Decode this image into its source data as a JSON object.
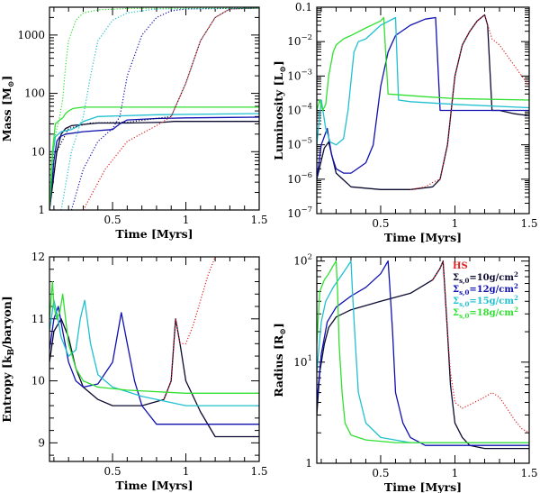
{
  "colors": {
    "black": "#0a0a30",
    "blue": "#1010b0",
    "cyan": "#20c0d0",
    "green": "#30e030",
    "red": "#e02020"
  },
  "chart_data": [
    {
      "type": "line",
      "ylabel_parts": [
        "Mass [M",
        "⊙",
        "]"
      ],
      "xlabel": "Time [Myrs]",
      "xlim": [
        0.07,
        1.5
      ],
      "ylim": [
        1,
        3000
      ],
      "yscale": "log",
      "xticks": [
        0.5,
        1,
        1.5
      ],
      "xtick_labels": [
        "0.5",
        "1",
        "1.5"
      ],
      "yticks": [
        1,
        10,
        100,
        1000
      ],
      "ytick_labels": [
        "1",
        "10",
        "100",
        "1000"
      ],
      "series": [
        {
          "color_key": "black",
          "style": "solid",
          "x": [
            0.07,
            0.12,
            0.15,
            0.18,
            0.22,
            0.4,
            0.6,
            0.85,
            0.92,
            0.95,
            1.0,
            1.5
          ],
          "y": [
            1,
            10,
            20,
            25,
            28,
            31,
            31,
            32,
            33,
            33,
            33,
            33
          ]
        },
        {
          "color_key": "blue",
          "style": "solid",
          "x": [
            0.07,
            0.1,
            0.12,
            0.14,
            0.18,
            0.3,
            0.5,
            0.55,
            0.6,
            0.8,
            1.0,
            1.5
          ],
          "y": [
            1,
            7,
            15,
            18,
            20,
            22,
            24,
            30,
            35,
            37,
            38,
            39
          ]
        },
        {
          "color_key": "cyan",
          "style": "solid",
          "x": [
            0.07,
            0.09,
            0.11,
            0.15,
            0.22,
            0.26,
            0.3,
            0.4,
            0.8,
            1.5
          ],
          "y": [
            1,
            8,
            18,
            22,
            24,
            27,
            33,
            40,
            43,
            45
          ]
        },
        {
          "color_key": "green",
          "style": "solid",
          "x": [
            0.07,
            0.09,
            0.11,
            0.14,
            0.16,
            0.18,
            0.2,
            0.23,
            0.3,
            0.5,
            1.0,
            1.5
          ],
          "y": [
            1,
            10,
            30,
            35,
            38,
            45,
            50,
            55,
            58,
            58,
            58,
            58
          ]
        },
        {
          "color_key": "black",
          "style": "dotted",
          "x": [
            0.07,
            0.12,
            0.2,
            0.35,
            0.6,
            0.9,
            1.0,
            1.1,
            1.2,
            1.3,
            1.5
          ],
          "y": [
            1,
            10,
            25,
            31,
            32,
            40,
            150,
            800,
            2000,
            2800,
            2900
          ]
        },
        {
          "color_key": "red",
          "style": "dotted",
          "x": [
            0.3,
            0.45,
            0.6,
            0.8,
            0.9,
            1.0,
            1.1,
            1.2,
            1.3,
            1.5
          ],
          "y": [
            1,
            5,
            15,
            28,
            40,
            150,
            800,
            2000,
            2800,
            2900
          ]
        },
        {
          "color_key": "blue",
          "style": "dotted",
          "x": [
            0.22,
            0.3,
            0.4,
            0.5,
            0.55,
            0.6,
            0.7,
            0.8,
            0.9,
            1.0,
            1.5
          ],
          "y": [
            1,
            5,
            15,
            25,
            40,
            200,
            1000,
            2000,
            2600,
            2800,
            2900
          ]
        },
        {
          "color_key": "cyan",
          "style": "dotted",
          "x": [
            0.15,
            0.22,
            0.27,
            0.3,
            0.35,
            0.4,
            0.5,
            0.6,
            0.8,
            1.5
          ],
          "y": [
            1,
            10,
            25,
            40,
            200,
            800,
            1800,
            2400,
            2800,
            2900
          ]
        },
        {
          "color_key": "green",
          "style": "dotted",
          "x": [
            0.07,
            0.1,
            0.14,
            0.16,
            0.18,
            0.2,
            0.25,
            0.3,
            0.4,
            0.6,
            1.5
          ],
          "y": [
            1,
            15,
            40,
            80,
            300,
            800,
            1800,
            2400,
            2700,
            2850,
            2900
          ]
        }
      ]
    },
    {
      "type": "line",
      "ylabel_parts": [
        "Luminosity [L",
        "⊙",
        "]"
      ],
      "xlabel": "Time [Myrs]",
      "xlim": [
        0.07,
        1.5
      ],
      "ylim": [
        1e-07,
        0.1
      ],
      "yscale": "log",
      "xticks": [
        0.5,
        1,
        1.5
      ],
      "xtick_labels": [
        "0.5",
        "1",
        "1.5"
      ],
      "yticks": [
        1e-07,
        1e-06,
        1e-05,
        0.0001,
        0.001,
        0.01,
        0.1
      ],
      "ytick_labels": [
        {
          "base": "10",
          "exp": "−7"
        },
        {
          "base": "10",
          "exp": "−6"
        },
        {
          "base": "10",
          "exp": "−5"
        },
        {
          "base": "10",
          "exp": "−4"
        },
        {
          "base": "10",
          "exp": "−3"
        },
        {
          "base": "10",
          "exp": "−2"
        },
        {
          "base": "0.1",
          "exp": ""
        }
      ],
      "series": [
        {
          "color_key": "black",
          "style": "solid",
          "x": [
            0.07,
            0.12,
            0.15,
            0.2,
            0.3,
            0.5,
            0.7,
            0.85,
            0.9,
            0.95,
            1.0,
            1.05,
            1.1,
            1.15,
            1.2,
            1.22,
            1.25,
            1.3,
            1.4,
            1.5
          ],
          "y": [
            1e-06,
            8e-06,
            1.2e-05,
            1.5e-06,
            6e-07,
            5e-07,
            5e-07,
            6e-07,
            1e-06,
            1e-05,
            0.001,
            0.008,
            0.02,
            0.04,
            0.06,
            0.03,
            0.0001,
            0.0001,
            8e-05,
            7e-05
          ]
        },
        {
          "color_key": "blue",
          "style": "solid",
          "x": [
            0.07,
            0.1,
            0.14,
            0.17,
            0.2,
            0.25,
            0.3,
            0.4,
            0.45,
            0.5,
            0.55,
            0.6,
            0.7,
            0.8,
            0.87,
            0.9,
            1.0,
            1.2,
            1.5
          ],
          "y": [
            1e-06,
            1e-05,
            3e-05,
            5e-06,
            2e-06,
            1.5e-06,
            1.5e-06,
            3e-06,
            1e-05,
            0.0005,
            0.005,
            0.015,
            0.03,
            0.045,
            0.05,
            0.0001,
            0.0001,
            0.0001,
            0.0001
          ]
        },
        {
          "color_key": "cyan",
          "style": "solid",
          "x": [
            0.07,
            0.1,
            0.13,
            0.16,
            0.2,
            0.25,
            0.28,
            0.32,
            0.35,
            0.4,
            0.5,
            0.6,
            0.62,
            0.7,
            1.0,
            1.5
          ],
          "y": [
            1e-05,
            0.0002,
            3e-05,
            1.2e-05,
            1e-05,
            1.5e-05,
            0.0001,
            0.005,
            0.01,
            0.012,
            0.03,
            0.05,
            0.0002,
            0.00018,
            0.00015,
            0.00012
          ]
        },
        {
          "color_key": "green",
          "style": "solid",
          "x": [
            0.07,
            0.09,
            0.11,
            0.13,
            0.15,
            0.18,
            0.2,
            0.25,
            0.3,
            0.4,
            0.5,
            0.52,
            0.55,
            0.8,
            1.0,
            1.5
          ],
          "y": [
            0.0001,
            0.0002,
            0.0001,
            0.00015,
            0.001,
            0.005,
            0.008,
            0.012,
            0.015,
            0.025,
            0.04,
            0.05,
            0.0003,
            0.00025,
            0.00022,
            0.0002
          ]
        },
        {
          "color_key": "red",
          "style": "dotted",
          "x": [
            0.7,
            0.8,
            0.85,
            0.9,
            0.95,
            1.0,
            1.05,
            1.1,
            1.15,
            1.2,
            1.25,
            1.3,
            1.4,
            1.5
          ],
          "y": [
            5e-07,
            6e-07,
            8e-07,
            1e-06,
            1e-05,
            0.001,
            0.008,
            0.02,
            0.04,
            0.06,
            0.012,
            0.008,
            0.002,
            0.0005
          ]
        }
      ]
    },
    {
      "type": "line",
      "ylabel_parts": [
        "Entropy [k",
        "B",
        "/baryon]"
      ],
      "xlabel": "Time [Myrs]",
      "xlim": [
        0.07,
        1.5
      ],
      "ylim": [
        8.7,
        12
      ],
      "yscale": "linear",
      "xticks": [
        0.5,
        1,
        1.5
      ],
      "xtick_labels": [
        "0.5",
        "1",
        "1.5"
      ],
      "yticks": [
        9,
        10,
        11,
        12
      ],
      "ytick_labels": [
        "9",
        "10",
        "11",
        "12"
      ],
      "series": [
        {
          "color_key": "black",
          "style": "solid",
          "x": [
            0.07,
            0.1,
            0.15,
            0.2,
            0.25,
            0.3,
            0.4,
            0.5,
            0.7,
            0.85,
            0.9,
            0.93,
            0.96,
            1.0,
            1.1,
            1.2,
            1.5
          ],
          "y": [
            10.3,
            10.8,
            11.0,
            10.7,
            10.2,
            9.9,
            9.7,
            9.6,
            9.6,
            9.7,
            10.0,
            11.0,
            10.6,
            10.0,
            9.5,
            9.1,
            9.1
          ]
        },
        {
          "color_key": "blue",
          "style": "solid",
          "x": [
            0.07,
            0.1,
            0.13,
            0.16,
            0.2,
            0.25,
            0.3,
            0.4,
            0.5,
            0.56,
            0.6,
            0.65,
            0.7,
            0.8,
            1.0,
            1.5
          ],
          "y": [
            10.5,
            11.0,
            11.2,
            10.8,
            10.3,
            10.0,
            9.9,
            9.95,
            10.3,
            11.1,
            10.6,
            10.0,
            9.6,
            9.3,
            9.3,
            9.3
          ]
        },
        {
          "color_key": "cyan",
          "style": "solid",
          "x": [
            0.07,
            0.1,
            0.12,
            0.15,
            0.2,
            0.25,
            0.28,
            0.31,
            0.35,
            0.4,
            0.5,
            0.7,
            1.0,
            1.5
          ],
          "y": [
            10.8,
            11.3,
            11.1,
            10.7,
            10.4,
            10.5,
            11.0,
            11.3,
            10.6,
            10.1,
            9.9,
            9.75,
            9.6,
            9.6
          ]
        },
        {
          "color_key": "green",
          "style": "solid",
          "x": [
            0.07,
            0.09,
            0.1,
            0.12,
            0.14,
            0.16,
            0.18,
            0.2,
            0.25,
            0.3,
            0.4,
            0.6,
            1.0,
            1.5
          ],
          "y": [
            11.0,
            11.6,
            11.2,
            11.0,
            11.1,
            11.4,
            11.0,
            10.6,
            10.2,
            10.0,
            9.9,
            9.85,
            9.8,
            9.8
          ]
        },
        {
          "color_key": "red",
          "style": "dotted",
          "x": [
            0.85,
            0.9,
            0.93,
            0.96,
            1.0,
            1.05,
            1.1,
            1.15,
            1.2
          ],
          "y": [
            9.7,
            10.0,
            11.0,
            10.6,
            10.6,
            10.9,
            11.3,
            11.7,
            12.0
          ]
        }
      ]
    },
    {
      "type": "line",
      "ylabel_parts": [
        "Radius [R",
        "⊙",
        "]"
      ],
      "xlabel": "Time [Myrs]",
      "xlim": [
        0.07,
        1.5
      ],
      "ylim": [
        1,
        110
      ],
      "yscale": "log",
      "xticks": [
        0.5,
        1,
        1.5
      ],
      "xtick_labels": [
        "0.5",
        "1",
        "1.5"
      ],
      "yticks": [
        1,
        10,
        100
      ],
      "ytick_labels": [
        {
          "base": "1",
          "exp": ""
        },
        {
          "base": "10",
          "exp": "1"
        },
        {
          "base": "10",
          "exp": "2"
        }
      ],
      "legend": {
        "position": "top-right",
        "items": [
          {
            "color_key": "red",
            "parts": [
              "HS"
            ]
          },
          {
            "color_key": "black",
            "parts": [
              "Σ",
              "s,0",
              "=10g/cm",
              "2"
            ]
          },
          {
            "color_key": "blue",
            "parts": [
              "Σ",
              "s,0",
              "=12g/cm",
              "2"
            ]
          },
          {
            "color_key": "cyan",
            "parts": [
              "Σ",
              "s,0",
              "=15g/cm",
              "2"
            ]
          },
          {
            "color_key": "green",
            "parts": [
              "Σ",
              "s,0",
              "=18g/cm",
              "2"
            ]
          }
        ]
      },
      "series": [
        {
          "color_key": "black",
          "style": "solid",
          "x": [
            0.07,
            0.09,
            0.12,
            0.15,
            0.2,
            0.3,
            0.5,
            0.7,
            0.85,
            0.9,
            0.92,
            0.93,
            0.95,
            0.97,
            1.0,
            1.05,
            1.1,
            1.2,
            1.5
          ],
          "y": [
            3,
            8,
            15,
            22,
            28,
            33,
            40,
            48,
            65,
            85,
            100,
            60,
            20,
            6,
            2.5,
            1.8,
            1.5,
            1.4,
            1.4
          ]
        },
        {
          "color_key": "blue",
          "style": "solid",
          "x": [
            0.07,
            0.1,
            0.14,
            0.2,
            0.3,
            0.4,
            0.5,
            0.55,
            0.56,
            0.58,
            0.6,
            0.65,
            0.7,
            0.8,
            1.0,
            1.5
          ],
          "y": [
            4,
            12,
            25,
            35,
            45,
            55,
            75,
            100,
            60,
            20,
            5,
            2.5,
            1.8,
            1.5,
            1.5,
            1.5
          ]
        },
        {
          "color_key": "cyan",
          "style": "solid",
          "x": [
            0.07,
            0.1,
            0.13,
            0.18,
            0.23,
            0.28,
            0.3,
            0.31,
            0.33,
            0.35,
            0.4,
            0.5,
            0.7,
            1.0,
            1.5
          ],
          "y": [
            8,
            25,
            40,
            55,
            70,
            90,
            100,
            50,
            15,
            5,
            2.5,
            1.8,
            1.6,
            1.6,
            1.6
          ]
        },
        {
          "color_key": "green",
          "style": "solid",
          "x": [
            0.07,
            0.09,
            0.12,
            0.15,
            0.18,
            0.2,
            0.21,
            0.22,
            0.24,
            0.26,
            0.3,
            0.4,
            0.6,
            1.0,
            1.5
          ],
          "y": [
            15,
            50,
            65,
            75,
            90,
            100,
            50,
            15,
            5,
            2.5,
            1.9,
            1.7,
            1.6,
            1.6,
            1.6
          ]
        },
        {
          "color_key": "red",
          "style": "dotted",
          "x": [
            0.85,
            0.9,
            0.92,
            0.93,
            0.95,
            0.97,
            1.0,
            1.05,
            1.1,
            1.2,
            1.25,
            1.3,
            1.35,
            1.4,
            1.45,
            1.5
          ],
          "y": [
            65,
            85,
            100,
            60,
            20,
            8,
            4,
            3.5,
            3.8,
            4.5,
            5,
            4.5,
            3.5,
            2.7,
            2.2,
            2.0
          ]
        }
      ]
    }
  ]
}
